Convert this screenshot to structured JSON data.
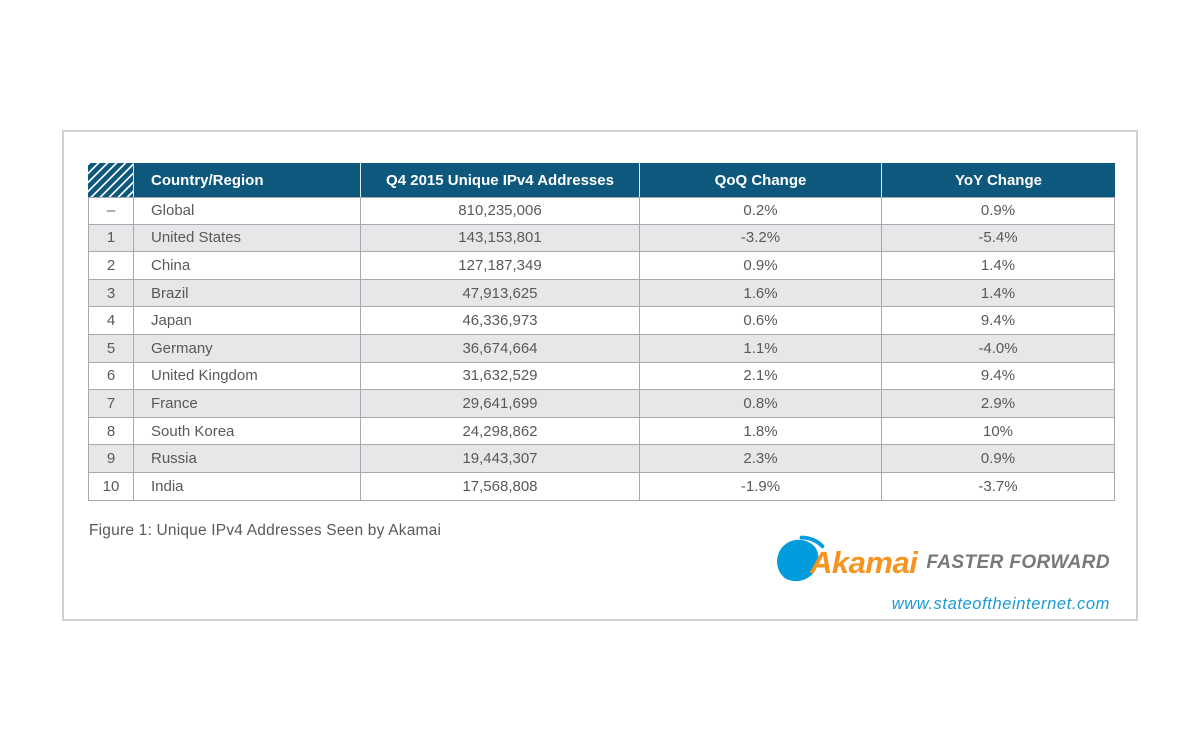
{
  "caption": "Figure 1: Unique IPv4 Addresses Seen by Akamai",
  "logo": {
    "brand": "Akamai",
    "tagline": "FASTER FORWARD",
    "url": "www.stateoftheinternet.com"
  },
  "colors": {
    "header_bg": "#0e587d",
    "row_alt": "#e6e7e8",
    "border": "#a7a9ac",
    "text": "#58595b",
    "akamai_orange": "#f7941d",
    "swoosh_blue": "#009cde",
    "tagline_gray": "#77787b",
    "url_blue": "#1a9bd7"
  },
  "table": {
    "columns": [
      {
        "key": "rank",
        "label": "",
        "align": "center"
      },
      {
        "key": "country",
        "label": "Country/Region",
        "align": "left"
      },
      {
        "key": "addresses",
        "label": "Q4 2015 Unique IPv4 Addresses",
        "align": "center"
      },
      {
        "key": "qoq",
        "label": "QoQ Change",
        "align": "center"
      },
      {
        "key": "yoy",
        "label": "YoY Change",
        "align": "center"
      }
    ],
    "rows": [
      {
        "rank": "–",
        "country": "Global",
        "addresses": "810,235,006",
        "qoq": "0.2%",
        "yoy": "0.9%"
      },
      {
        "rank": "1",
        "country": "United States",
        "addresses": "143,153,801",
        "qoq": "-3.2%",
        "yoy": "-5.4%"
      },
      {
        "rank": "2",
        "country": "China",
        "addresses": "127,187,349",
        "qoq": "0.9%",
        "yoy": "1.4%"
      },
      {
        "rank": "3",
        "country": "Brazil",
        "addresses": "47,913,625",
        "qoq": "1.6%",
        "yoy": "1.4%"
      },
      {
        "rank": "4",
        "country": "Japan",
        "addresses": "46,336,973",
        "qoq": "0.6%",
        "yoy": "9.4%"
      },
      {
        "rank": "5",
        "country": "Germany",
        "addresses": "36,674,664",
        "qoq": "1.1%",
        "yoy": "-4.0%"
      },
      {
        "rank": "6",
        "country": "United Kingdom",
        "addresses": "31,632,529",
        "qoq": "2.1%",
        "yoy": "9.4%"
      },
      {
        "rank": "7",
        "country": "France",
        "addresses": "29,641,699",
        "qoq": "0.8%",
        "yoy": "2.9%"
      },
      {
        "rank": "8",
        "country": "South Korea",
        "addresses": "24,298,862",
        "qoq": "1.8%",
        "yoy": "10%"
      },
      {
        "rank": "9",
        "country": "Russia",
        "addresses": "19,443,307",
        "qoq": "2.3%",
        "yoy": "0.9%"
      },
      {
        "rank": "10",
        "country": "India",
        "addresses": "17,568,808",
        "qoq": "-1.9%",
        "yoy": "-3.7%"
      }
    ]
  }
}
